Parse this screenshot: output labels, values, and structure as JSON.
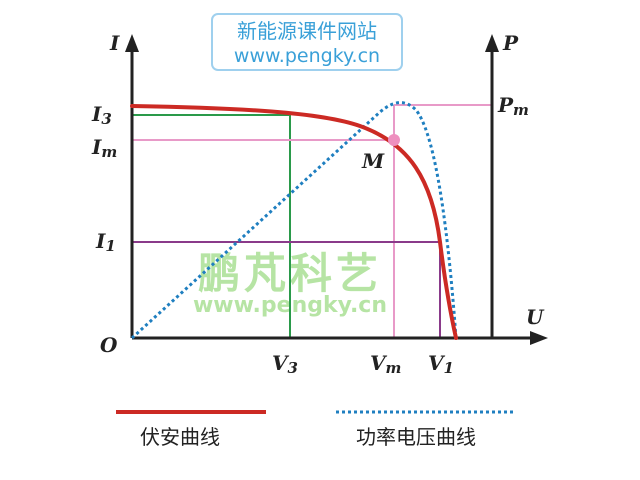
{
  "watermark_top": {
    "line1": "新能源课件网站",
    "line2": "www.pengky.cn"
  },
  "watermark_center": {
    "brand": "鹏芃科艺",
    "url": "www.pengky.cn"
  },
  "axes": {
    "y_left": "I",
    "y_right": "P",
    "x": "U",
    "origin": "O"
  },
  "labels": {
    "I3": "I3",
    "Im": "Im",
    "I1": "I1",
    "Pm": "Pm",
    "M": "M",
    "V3": "V3",
    "Vm": "Vm",
    "V1": "V1"
  },
  "legend": {
    "iv_curve": "伏安曲线",
    "pv_curve": "功率电压曲线"
  },
  "colors": {
    "iv_curve": "#cc2a24",
    "pv_curve": "#1f7fc0",
    "green_guide": "#2a9a4a",
    "pink_guide": "#e89ac8",
    "purple_guide": "#8a3a8a",
    "axis": "#222222",
    "watermark_blue": "#3aa0d8",
    "watermark_green": "#7ccf5a"
  }
}
